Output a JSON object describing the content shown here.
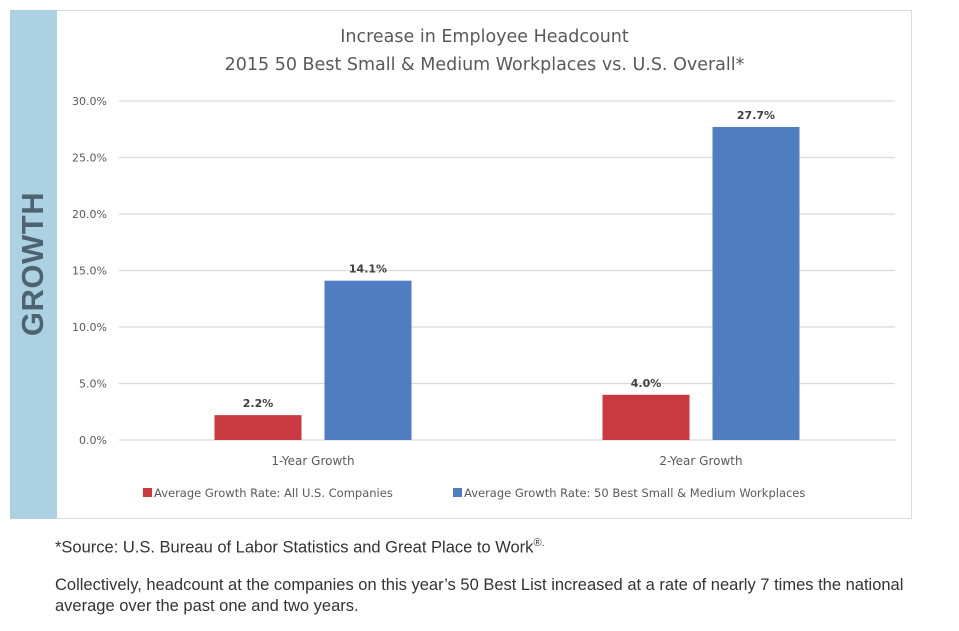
{
  "sidebar": {
    "label": "GROWTH",
    "color": "#abd1e3"
  },
  "chart_data": {
    "type": "bar",
    "title": "Increase in Employee Headcount",
    "subtitle": "2015 50 Best Small & Medium Workplaces vs. U.S. Overall*",
    "categories": [
      "1-Year Growth",
      "2-Year Growth"
    ],
    "series": [
      {
        "name": "Average Growth Rate: All U.S. Companies",
        "color": "#c9393f",
        "values": [
          2.2,
          4.0
        ],
        "labels": [
          "2.2%",
          "4.0%"
        ]
      },
      {
        "name": "Average Growth Rate: 50 Best Small & Medium Workplaces",
        "color": "#4e7ec1",
        "values": [
          14.1,
          27.7
        ],
        "labels": [
          "14.1%",
          "27.7%"
        ]
      }
    ],
    "xlabel": "",
    "ylabel": "",
    "ylim": [
      0,
      30
    ],
    "yticks": [
      0,
      5,
      10,
      15,
      20,
      25,
      30
    ],
    "ytick_labels": [
      "0.0%",
      "5.0%",
      "10.0%",
      "15.0%",
      "20.0%",
      "25.0%",
      "30.0%"
    ],
    "grid": true,
    "legend_position": "bottom"
  },
  "footer": {
    "source_text": "*Source: U.S. Bureau of Labor Statistics and Great Place to Work",
    "source_mark": "®.",
    "summary": "Collectively, headcount at the companies on this year’s 50 Best List increased at a rate of nearly 7 times the national average over the past one and two years."
  }
}
